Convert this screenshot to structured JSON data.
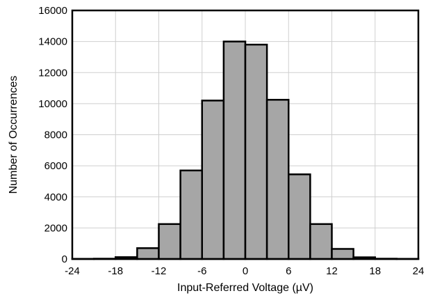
{
  "chart_data": {
    "type": "bar",
    "subtype": "histogram",
    "title": "",
    "xlabel": "Input-Referred Voltage (µV)",
    "ylabel": "Number of Occurrences",
    "xlim": [
      -24,
      24
    ],
    "ylim": [
      0,
      16000
    ],
    "grid": true,
    "bar_color": "#a6a6a6",
    "bin_width": 3,
    "bin_edges": [
      -24,
      -21,
      -18,
      -15,
      -12,
      -9,
      -6,
      -3,
      0,
      3,
      6,
      9,
      12,
      15,
      18,
      21,
      24
    ],
    "values": [
      10,
      20,
      120,
      700,
      2250,
      5700,
      10200,
      14000,
      13800,
      10250,
      5450,
      2250,
      650,
      110,
      20,
      10
    ],
    "x_ticks": [
      "-24",
      "-18",
      "-12",
      "-6",
      "0",
      "6",
      "12",
      "18",
      "24"
    ],
    "y_ticks": [
      "0",
      "2000",
      "4000",
      "6000",
      "8000",
      "10000",
      "12000",
      "14000",
      "16000"
    ]
  }
}
